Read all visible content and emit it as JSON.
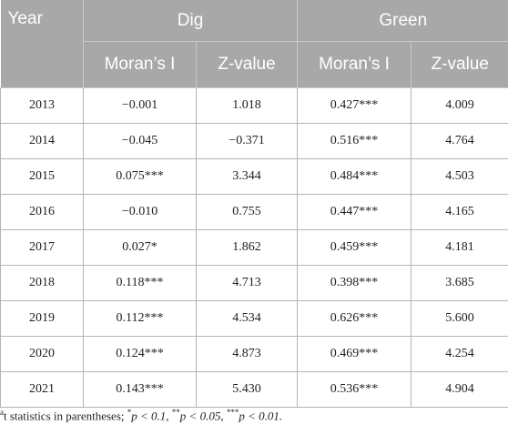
{
  "header": {
    "year": "Year",
    "groups": [
      "Dig",
      "Green"
    ],
    "subheaders": [
      "Moran’s I",
      "Z-value",
      "Moran’s I",
      "Z-value"
    ]
  },
  "rows": [
    {
      "year": "2013",
      "dig_i": "−0.001",
      "dig_z": "1.018",
      "green_i": "0.427***",
      "green_z": "4.009"
    },
    {
      "year": "2014",
      "dig_i": "−0.045",
      "dig_z": "−0.371",
      "green_i": "0.516***",
      "green_z": "4.764"
    },
    {
      "year": "2015",
      "dig_i": "0.075***",
      "dig_z": "3.344",
      "green_i": "0.484***",
      "green_z": "4.503"
    },
    {
      "year": "2016",
      "dig_i": "−0.010",
      "dig_z": "0.755",
      "green_i": "0.447***",
      "green_z": "4.165"
    },
    {
      "year": "2017",
      "dig_i": "0.027*",
      "dig_z": "1.862",
      "green_i": "0.459***",
      "green_z": "4.181"
    },
    {
      "year": "2018",
      "dig_i": "0.118***",
      "dig_z": "4.713",
      "green_i": "0.398***",
      "green_z": "3.685"
    },
    {
      "year": "2019",
      "dig_i": "0.112***",
      "dig_z": "4.534",
      "green_i": "0.626***",
      "green_z": "5.600"
    },
    {
      "year": "2020",
      "dig_i": "0.124***",
      "dig_z": "4.873",
      "green_i": "0.469***",
      "green_z": "4.254"
    },
    {
      "year": "2021",
      "dig_i": "0.143***",
      "dig_z": "5.430",
      "green_i": "0.536***",
      "green_z": "4.904"
    }
  ],
  "note": {
    "t_stat_label": "t statistics in parentheses;",
    "p1": "p < 0.1,",
    "p2": "p < 0.05,",
    "p3": "p < 0.01."
  }
}
